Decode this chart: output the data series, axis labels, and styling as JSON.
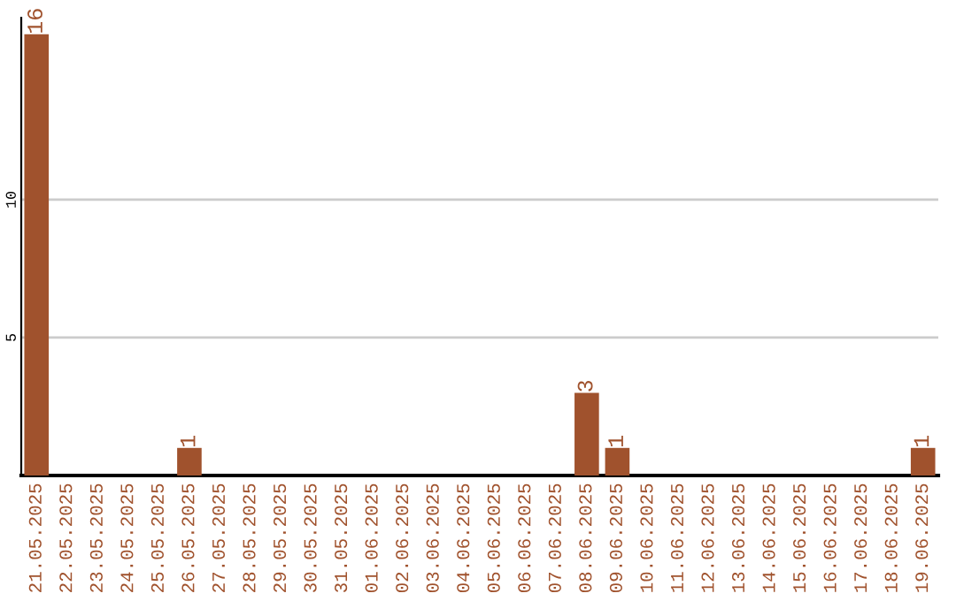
{
  "chart_data": {
    "type": "bar",
    "categories": [
      "21.05.2025",
      "22.05.2025",
      "23.05.2025",
      "24.05.2025",
      "25.05.2025",
      "26.05.2025",
      "27.05.2025",
      "28.05.2025",
      "29.05.2025",
      "30.05.2025",
      "31.05.2025",
      "01.06.2025",
      "02.06.2025",
      "03.06.2025",
      "04.06.2025",
      "05.06.2025",
      "06.06.2025",
      "07.06.2025",
      "08.06.2025",
      "09.06.2025",
      "10.06.2025",
      "11.06.2025",
      "12.06.2025",
      "13.06.2025",
      "14.06.2025",
      "15.06.2025",
      "16.06.2025",
      "17.06.2025",
      "18.06.2025",
      "19.06.2025"
    ],
    "values": [
      16,
      0,
      0,
      0,
      0,
      1,
      0,
      0,
      0,
      0,
      0,
      0,
      0,
      0,
      0,
      0,
      0,
      0,
      3,
      1,
      0,
      0,
      0,
      0,
      0,
      0,
      0,
      0,
      0,
      1
    ],
    "value_labels": [
      "16",
      null,
      null,
      null,
      null,
      "1",
      null,
      null,
      null,
      null,
      null,
      null,
      null,
      null,
      null,
      null,
      null,
      null,
      "3",
      "1",
      null,
      null,
      null,
      null,
      null,
      null,
      null,
      null,
      null,
      "1"
    ],
    "color": "#a0522d",
    "ylim": [
      0,
      16.6
    ],
    "yticks": [
      5,
      10
    ],
    "grid": "y"
  }
}
